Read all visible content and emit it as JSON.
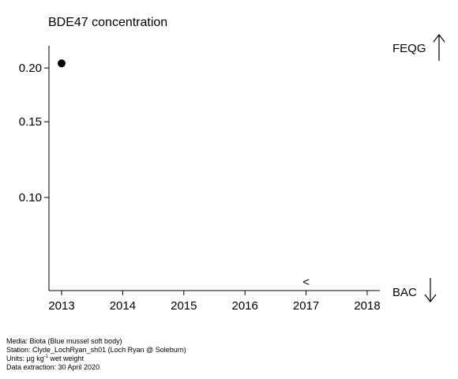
{
  "chart_data": {
    "type": "scatter",
    "title": "BDE47 concentration",
    "x_ticks": [
      "2013",
      "2014",
      "2015",
      "2016",
      "2017",
      "2018"
    ],
    "xlim": [
      2013,
      2018
    ],
    "y_scale": "log",
    "y_ticks": [
      0.1,
      0.15,
      0.2
    ],
    "y_tick_labels": [
      "0.10",
      "0.15",
      "0.20"
    ],
    "ylim": [
      0.065,
      0.215
    ],
    "points": [
      {
        "x": 2013,
        "y": 0.205
      }
    ],
    "annotations": [
      {
        "text": "<",
        "x": 2017
      }
    ],
    "reference_lines": [
      {
        "label": "FEQG",
        "arrow": "up",
        "position": "top-right"
      },
      {
        "label": "BAC",
        "arrow": "down",
        "position": "bottom-right"
      }
    ],
    "grid": false,
    "legend": "none"
  },
  "footer": {
    "media": "Media: Biota (Blue mussel soft body)",
    "station": "Station: Clyde_LochRyan_sh01 (Loch Ryan @ Soleburn)",
    "units_prefix": "Units:  µg kg",
    "units_sup": "-1",
    "units_suffix": " wet weight",
    "extraction": "Data extraction: 30 April 2020"
  },
  "colors": {
    "points": "#000000",
    "axis": "#000000",
    "background": "#ffffff"
  }
}
